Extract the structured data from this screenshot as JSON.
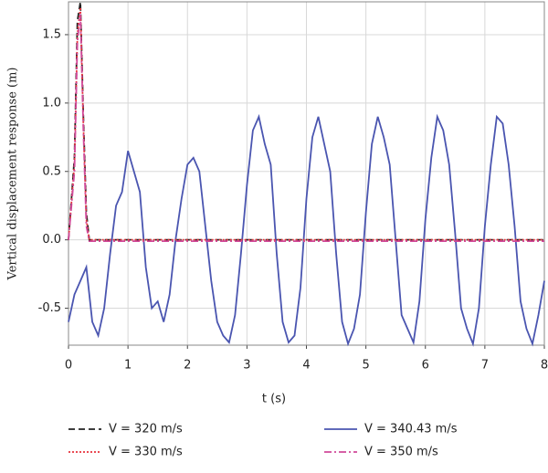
{
  "chart_data": {
    "type": "line",
    "x_label": "t (s)",
    "y_label": "Vertical displacement response (m)",
    "xlim": [
      0,
      8
    ],
    "ylim": [
      -0.77,
      1.74
    ],
    "xticks": [
      0,
      1,
      2,
      3,
      4,
      5,
      6,
      7,
      8
    ],
    "yticks": [
      -0.5,
      {
        "value": 0,
        "label": "0.0"
      },
      0.5,
      {
        "value": 1,
        "label": "1.0"
      },
      1.5
    ],
    "grid": true,
    "legend": "bottom",
    "series": [
      {
        "name": "V = 320 m/s",
        "color": "#222222",
        "dash": "dashed",
        "x": [
          0,
          0.1,
          0.15,
          0.2,
          0.25,
          0.3,
          0.35,
          8
        ],
        "values": [
          0,
          0.6,
          1.6,
          1.74,
          0.9,
          0.2,
          0,
          0
        ]
      },
      {
        "name": "V = 340.43 m/s",
        "color": "#4a55b0",
        "dash": "solid",
        "x": [
          0,
          0.1,
          0.2,
          0.3,
          0.4,
          0.5,
          0.6,
          0.7,
          0.8,
          0.9,
          1,
          1.1,
          1.2,
          1.3,
          1.4,
          1.5,
          1.6,
          1.7,
          1.8,
          1.9,
          2,
          2.1,
          2.2,
          2.3,
          2.4,
          2.5,
          2.6,
          2.7,
          2.8,
          2.9,
          3,
          3.1,
          3.2,
          3.3,
          3.4,
          3.5,
          3.6,
          3.7,
          3.8,
          3.9,
          4,
          4.1,
          4.2,
          4.3,
          4.4,
          4.5,
          4.6,
          4.7,
          4.8,
          4.9,
          5,
          5.1,
          5.2,
          5.3,
          5.4,
          5.5,
          5.6,
          5.7,
          5.8,
          5.9,
          6,
          6.1,
          6.2,
          6.3,
          6.4,
          6.5,
          6.6,
          6.7,
          6.8,
          6.9,
          7,
          7.1,
          7.2,
          7.3,
          7.4,
          7.5,
          7.6,
          7.7,
          7.8,
          7.9,
          8
        ],
        "values": [
          -0.6,
          -0.4,
          -0.3,
          -0.2,
          -0.6,
          -0.7,
          -0.5,
          -0.1,
          0.25,
          0.35,
          0.65,
          0.5,
          0.35,
          -0.2,
          -0.5,
          -0.45,
          -0.6,
          -0.4,
          0,
          0.3,
          0.55,
          0.6,
          0.5,
          0.1,
          -0.3,
          -0.6,
          -0.7,
          -0.75,
          -0.55,
          -0.1,
          0.4,
          0.8,
          0.9,
          0.7,
          0.55,
          -0.1,
          -0.6,
          -0.75,
          -0.7,
          -0.35,
          0.3,
          0.75,
          0.9,
          0.7,
          0.5,
          -0.1,
          -0.6,
          -0.76,
          -0.65,
          -0.4,
          0.2,
          0.7,
          0.9,
          0.75,
          0.55,
          0,
          -0.55,
          -0.65,
          -0.75,
          -0.45,
          0.15,
          0.6,
          0.9,
          0.8,
          0.55,
          0.05,
          -0.5,
          -0.65,
          -0.76,
          -0.5,
          0.1,
          0.55,
          0.9,
          0.85,
          0.55,
          0.1,
          -0.45,
          -0.65,
          -0.76,
          -0.55,
          -0.3
        ]
      },
      {
        "name": "V = 330 m/s",
        "color": "#e8323c",
        "dash": "dotted",
        "x": [
          0,
          0.1,
          0.15,
          0.2,
          0.25,
          0.3,
          0.35,
          8
        ],
        "values": [
          0,
          0.55,
          1.5,
          1.7,
          0.85,
          0.15,
          0,
          0
        ]
      },
      {
        "name": "V = 350 m/s",
        "color": "#d04a9a",
        "dash": "dashdot",
        "x": [
          0,
          0.1,
          0.15,
          0.2,
          0.25,
          0.3,
          0.35,
          8
        ],
        "values": [
          0,
          0.5,
          1.45,
          1.65,
          0.8,
          0.1,
          -0.01,
          -0.01
        ]
      }
    ]
  }
}
